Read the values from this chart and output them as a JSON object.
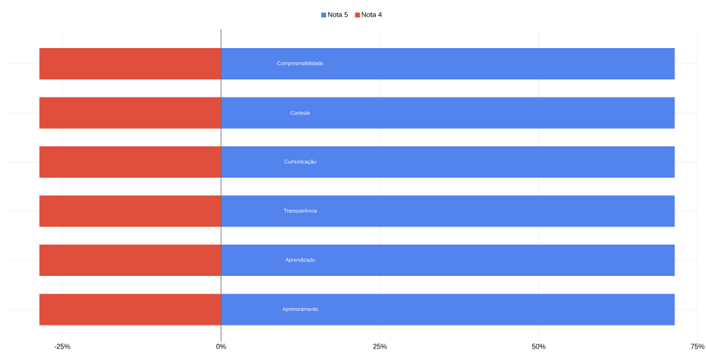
{
  "chart_data": {
    "type": "bar",
    "orientation": "horizontal",
    "categories": [
      "Compreensibilidade",
      "Controle",
      "Comunicação",
      "Transparência",
      "Aprendizado",
      "Aprimoramento"
    ],
    "series": [
      {
        "name": "Nota 5",
        "color": "#5383ec",
        "values": [
          71.4,
          71.4,
          71.4,
          71.4,
          71.4,
          71.4
        ]
      },
      {
        "name": "Nota 4",
        "color": "#e04e3c",
        "values": [
          -28.6,
          -28.6,
          -28.6,
          -28.6,
          -28.6,
          -28.6
        ]
      }
    ],
    "xlim": [
      -33.7,
      75
    ],
    "xticks": [
      {
        "value": -25,
        "label": "-25%"
      },
      {
        "value": 0,
        "label": "0%"
      },
      {
        "value": 25,
        "label": "25%"
      },
      {
        "value": 50,
        "label": "50%"
      },
      {
        "value": 75,
        "label": "75%"
      }
    ],
    "ref_lines": [
      {
        "axis": "x",
        "value": 0,
        "color": "#6b6b6b"
      }
    ],
    "grid": true,
    "legend": "top",
    "stacked": true
  }
}
